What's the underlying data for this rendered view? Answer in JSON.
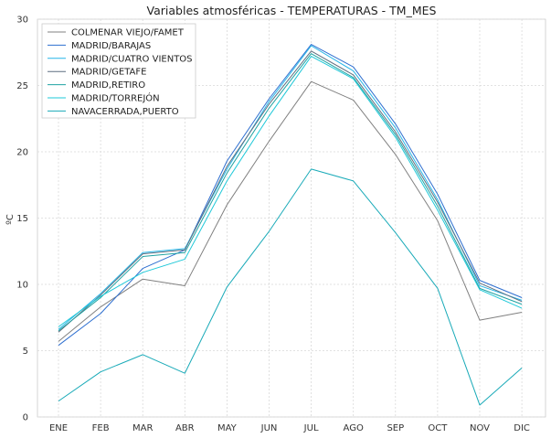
{
  "chart_data": {
    "type": "line",
    "title": "Variables atmosféricas - TEMPERATURAS - TM_MES",
    "xlabel": "",
    "ylabel": "ºC",
    "categories": [
      "ENE",
      "FEB",
      "MAR",
      "ABR",
      "MAY",
      "JUN",
      "JUL",
      "AGO",
      "SEP",
      "OCT",
      "NOV",
      "DIC"
    ],
    "ylim": [
      0,
      30
    ],
    "yticks": [
      0,
      5,
      10,
      15,
      20,
      25,
      30
    ],
    "grid": true,
    "legend_position": "top-left",
    "series": [
      {
        "name": "COLMENAR VIEJO/FAMET",
        "color": "#808080",
        "values": [
          5.7,
          8.3,
          10.4,
          9.9,
          16.0,
          20.8,
          25.3,
          23.9,
          19.8,
          14.8,
          7.3,
          7.9
        ]
      },
      {
        "name": "MADRID/BARAJAS",
        "color": "#2e6fd0",
        "values": [
          5.4,
          7.8,
          11.2,
          12.6,
          19.3,
          24.0,
          28.1,
          26.4,
          22.1,
          16.8,
          10.3,
          9.0
        ]
      },
      {
        "name": "MADRID/CUATRO VIENTOS",
        "color": "#25b6e8",
        "values": [
          6.6,
          9.3,
          12.4,
          12.7,
          18.7,
          23.8,
          28.0,
          26.1,
          21.8,
          16.4,
          9.9,
          8.8
        ]
      },
      {
        "name": "MADRID/GETAFE",
        "color": "#5f6f80",
        "values": [
          6.4,
          9.2,
          12.3,
          12.6,
          18.9,
          23.6,
          27.6,
          25.8,
          21.5,
          16.2,
          10.1,
          8.7
        ]
      },
      {
        "name": "MADRID,RETIRO",
        "color": "#1fa2a2",
        "values": [
          6.5,
          9.0,
          12.1,
          12.4,
          18.4,
          23.3,
          27.4,
          25.6,
          21.3,
          15.9,
          9.7,
          8.5
        ]
      },
      {
        "name": "MADRID/TORREJÓN",
        "color": "#1ec8d8",
        "values": [
          6.8,
          9.1,
          10.9,
          11.9,
          17.8,
          22.7,
          27.2,
          25.5,
          21.1,
          15.6,
          9.6,
          8.2
        ]
      },
      {
        "name": "NAVACERRADA,PUERTO",
        "color": "#19aab8",
        "values": [
          1.2,
          3.4,
          4.7,
          3.3,
          9.8,
          14.0,
          18.7,
          17.8,
          13.9,
          9.7,
          0.9,
          3.7
        ]
      }
    ]
  }
}
